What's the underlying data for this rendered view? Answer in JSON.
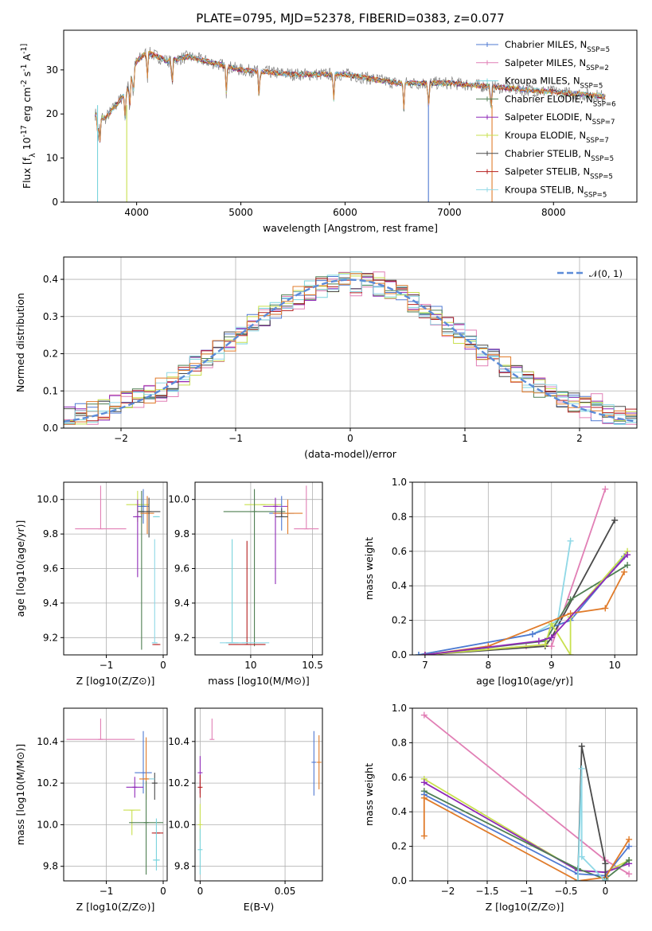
{
  "figure": {
    "title": "PLATE=0795, MJD=52378, FIBERID=0383, z=0.077"
  },
  "colors": {
    "Chabrier MILES": "#4f79d2",
    "Salpeter MILES": "#e17fb5",
    "Kroupa MILES": "#79d4dd",
    "Chabrier ELODIE": "#4f7f52",
    "Salpeter ELODIE": "#8f2ab8",
    "Kroupa ELODIE": "#c9e04f",
    "Chabrier STELIB": "#4a4a4a",
    "Salpeter STELIB": "#b51e1e",
    "Kroupa STELIB": "#8fd8e6",
    "extra": "#e07b2a"
  },
  "chart_data": [
    {
      "id": "spectrum",
      "type": "line",
      "title": "PLATE=0795, MJD=52378, FIBERID=0383, z=0.077",
      "xlabel": "wavelength [Angstrom, rest frame]",
      "ylabel": "Flux [f_λ 10^-17 erg cm^-2 s^-1 A^-1]",
      "xlim": [
        3300,
        8800
      ],
      "ylim": [
        0,
        39
      ],
      "xticks": [
        4000,
        5000,
        6000,
        7000,
        8000
      ],
      "yticks": [
        0,
        10,
        20,
        30
      ],
      "legend_position": "top-right",
      "series": [
        {
          "name": "Chabrier MILES, N_SSP=5"
        },
        {
          "name": "Salpeter MILES, N_SSP=2"
        },
        {
          "name": "Kroupa MILES, N_SSP=5"
        },
        {
          "name": "Chabrier ELODIE, N_SSP=6"
        },
        {
          "name": "Salpeter ELODIE, N_SSP=7"
        },
        {
          "name": "Kroupa ELODIE, N_SSP=7"
        },
        {
          "name": "Chabrier STELIB, N_SSP=5"
        },
        {
          "name": "Salpeter STELIB, N_SSP=5"
        },
        {
          "name": "Kroupa STELIB, N_SSP=5"
        }
      ],
      "continuum_x": [
        3600,
        3700,
        3800,
        3900,
        4000,
        4100,
        4300,
        4500,
        5000,
        5500,
        6000,
        6500,
        7000,
        7500,
        8000,
        8500
      ],
      "continuum_y": [
        20,
        19,
        22,
        25,
        32,
        34,
        32,
        33,
        30,
        29,
        29,
        27,
        27,
        26,
        25,
        24
      ]
    },
    {
      "id": "residual-histogram",
      "type": "line",
      "xlabel": "(data-model)/error",
      "ylabel": "Normed distribution",
      "xlim": [
        -2.5,
        2.5
      ],
      "ylim": [
        0,
        0.46
      ],
      "xticks": [
        -2,
        -1,
        0,
        1,
        2
      ],
      "yticks": [
        0.0,
        0.1,
        0.2,
        0.3,
        0.4
      ],
      "grid": true,
      "legend_position": "top-right",
      "reference": {
        "name": "N(0,1)",
        "mean": 0,
        "sigma": 1
      }
    },
    {
      "id": "age-vs-Z",
      "type": "scatter",
      "xlabel": "Z [log10(Z/Z⊙)]",
      "ylabel": "age [log10(age/yr)]",
      "xlim": [
        -1.75,
        0.07
      ],
      "ylim": [
        9.1,
        10.1
      ],
      "xticks": [
        -1,
        0
      ],
      "yticks": [
        9.2,
        9.4,
        9.6,
        9.8,
        10.0
      ],
      "grid": true,
      "points": [
        {
          "series": "Salpeter MILES",
          "x": -1.1,
          "y": 9.83,
          "xerr": 0.45,
          "yerr_lo": 0,
          "yerr_hi": 0.25
        },
        {
          "series": "Kroupa ELODIE",
          "x": -0.45,
          "y": 9.97,
          "xerr": 0.2,
          "yerr_lo": 0.1,
          "yerr_hi": 0.08
        },
        {
          "series": "Chabrier MILES",
          "x": -0.35,
          "y": 9.96,
          "xerr": 0.1,
          "yerr_lo": 0.1,
          "yerr_hi": 0.1
        },
        {
          "series": "Salpeter ELODIE",
          "x": -0.45,
          "y": 9.9,
          "xerr": 0.08,
          "yerr_lo": 0.35,
          "yerr_hi": 0.1
        },
        {
          "series": "Chabrier ELODIE",
          "x": -0.38,
          "y": 9.93,
          "xerr": 0.05,
          "yerr_lo": 0.8,
          "yerr_hi": 0.12
        },
        {
          "series": "extra",
          "x": -0.28,
          "y": 9.92,
          "xerr": 0.12,
          "yerr_lo": 0.12,
          "yerr_hi": 0.1
        },
        {
          "series": "Chabrier STELIB",
          "x": -0.25,
          "y": 9.93,
          "xerr": 0.2,
          "yerr_lo": 0.15,
          "yerr_hi": 0.08
        },
        {
          "series": "Kroupa STELIB",
          "x": -0.15,
          "y": 9.17,
          "xerr": 0.05,
          "yerr_lo": 0,
          "yerr_hi": 0.6
        },
        {
          "series": "Salpeter STELIB",
          "x": -0.12,
          "y": 9.16,
          "xerr": 0.07,
          "yerr_lo": 0,
          "yerr_hi": 0
        },
        {
          "series": "Kroupa MILES",
          "x": -0.12,
          "y": 9.9,
          "xerr": 0.06,
          "yerr_lo": 0,
          "yerr_hi": 0
        }
      ]
    },
    {
      "id": "age-vs-mass",
      "type": "scatter",
      "xlabel": "mass [log10(M/M⊙)]",
      "ylabel": "",
      "xlim": [
        9.55,
        10.58
      ],
      "ylim": [
        9.1,
        10.1
      ],
      "xticks": [
        10.0,
        10.5
      ],
      "yticks": [
        9.2,
        9.4,
        9.6,
        9.8,
        10.0
      ],
      "grid": true,
      "points": [
        {
          "series": "Salpeter MILES",
          "x": 10.45,
          "y": 9.83,
          "xerr": 0.1,
          "yerr_lo": 0,
          "yerr_hi": 0.25
        },
        {
          "series": "Kroupa ELODIE",
          "x": 10.1,
          "y": 9.97,
          "xerr": 0.15,
          "yerr_lo": 0,
          "yerr_hi": 0
        },
        {
          "series": "Chabrier ELODIE",
          "x": 10.03,
          "y": 9.93,
          "xerr": 0.25,
          "yerr_lo": 0.78,
          "yerr_hi": 0.13
        },
        {
          "series": "Salpeter ELODIE",
          "x": 10.2,
          "y": 9.96,
          "xerr": 0.1,
          "yerr_lo": 0.45,
          "yerr_hi": 0.05
        },
        {
          "series": "Chabrier MILES",
          "x": 10.25,
          "y": 9.92,
          "xerr": 0.1,
          "yerr_lo": 0.1,
          "yerr_hi": 0.1
        },
        {
          "series": "extra",
          "x": 10.3,
          "y": 9.92,
          "xerr": 0.12,
          "yerr_lo": 0.12,
          "yerr_hi": 0.08
        },
        {
          "series": "Chabrier STELIB",
          "x": 10.25,
          "y": 9.9,
          "xerr": 0.05,
          "yerr_lo": 0,
          "yerr_hi": 0.05
        },
        {
          "series": "Kroupa MILES",
          "x": 9.85,
          "y": 9.17,
          "xerr": 0.05,
          "yerr_lo": 0,
          "yerr_hi": 0.6
        },
        {
          "series": "Salpeter STELIB",
          "x": 9.97,
          "y": 9.16,
          "xerr": 0.15,
          "yerr_lo": 0,
          "yerr_hi": 0.6
        },
        {
          "series": "Kroupa STELIB",
          "x": 9.95,
          "y": 9.17,
          "xerr": 0.2,
          "yerr_lo": 0,
          "yerr_hi": 0
        }
      ]
    },
    {
      "id": "mass-weight-vs-age",
      "type": "line",
      "xlabel": "age [log10(age/yr)]",
      "ylabel": "mass weight",
      "xlim": [
        6.8,
        10.35
      ],
      "ylim": [
        0,
        1.0
      ],
      "xticks": [
        7,
        8,
        9,
        10
      ],
      "yticks": [
        0.0,
        0.2,
        0.4,
        0.6,
        0.8,
        1.0
      ],
      "grid": true,
      "series": [
        {
          "series": "Salpeter MILES",
          "x": [
            7.0,
            8.6,
            9.0,
            9.85
          ],
          "y": [
            0.0,
            0.05,
            0.05,
            0.96
          ]
        },
        {
          "series": "Chabrier STELIB",
          "x": [
            7.0,
            8.9,
            9.0,
            10.0
          ],
          "y": [
            0.0,
            0.05,
            0.1,
            0.78
          ]
        },
        {
          "series": "Kroupa STELIB",
          "x": [
            6.9,
            8.7,
            9.1,
            9.3
          ],
          "y": [
            0.0,
            0.12,
            0.2,
            0.66
          ]
        },
        {
          "series": "Chabrier MILES",
          "x": [
            6.9,
            8.7,
            9.3,
            10.15
          ],
          "y": [
            0.0,
            0.12,
            0.2,
            0.57
          ]
        },
        {
          "series": "Chabrier ELODIE",
          "x": [
            7.0,
            8.9,
            9.3,
            10.2
          ],
          "y": [
            0.0,
            0.08,
            0.32,
            0.52
          ]
        },
        {
          "series": "Kroupa ELODIE",
          "x": [
            7.0,
            8.9,
            9.0,
            9.3,
            9.3,
            10.2
          ],
          "y": [
            0.0,
            0.06,
            0.18,
            0.0,
            0.22,
            0.6
          ]
        },
        {
          "series": "extra",
          "x": [
            7.0,
            8.0,
            9.3,
            9.85,
            10.15
          ],
          "y": [
            0.0,
            0.05,
            0.24,
            0.27,
            0.48
          ]
        },
        {
          "series": "Salpeter ELODIE",
          "x": [
            7.0,
            8.8,
            9.0,
            10.2
          ],
          "y": [
            0.0,
            0.08,
            0.1,
            0.58
          ]
        }
      ]
    },
    {
      "id": "mass-vs-Z",
      "type": "scatter",
      "xlabel": "Z [log10(Z/Z⊙)]",
      "ylabel": "mass [log10(M/M⊙)]",
      "xlim": [
        -1.75,
        0.07
      ],
      "ylim": [
        9.73,
        10.56
      ],
      "xticks": [
        -1,
        0
      ],
      "yticks": [
        9.8,
        10.0,
        10.2,
        10.4
      ],
      "grid": true,
      "points": [
        {
          "series": "Salpeter MILES",
          "x": -1.1,
          "y": 10.41,
          "xerr": 0.6,
          "yerr_lo": 0,
          "yerr_hi": 0.1
        },
        {
          "series": "Chabrier MILES",
          "x": -0.35,
          "y": 10.25,
          "xerr": 0.15,
          "yerr_lo": 0.1,
          "yerr_hi": 0.2
        },
        {
          "series": "Salpeter ELODIE",
          "x": -0.5,
          "y": 10.18,
          "xerr": 0.15,
          "yerr_lo": 0.05,
          "yerr_hi": 0.05
        },
        {
          "series": "extra",
          "x": -0.3,
          "y": 10.22,
          "xerr": 0.12,
          "yerr_lo": 0.1,
          "yerr_hi": 0.2
        },
        {
          "series": "Kroupa ELODIE",
          "x": -0.55,
          "y": 10.07,
          "xerr": 0.15,
          "yerr_lo": 0.12,
          "yerr_hi": 0
        },
        {
          "series": "Chabrier ELODIE",
          "x": -0.3,
          "y": 10.01,
          "xerr": 0.3,
          "yerr_lo": 0.25,
          "yerr_hi": 0.2
        },
        {
          "series": "Chabrier STELIB",
          "x": -0.15,
          "y": 10.2,
          "xerr": 0.05,
          "yerr_lo": 0.08,
          "yerr_hi": 0.05
        },
        {
          "series": "Salpeter STELIB",
          "x": -0.1,
          "y": 9.96,
          "xerr": 0.1,
          "yerr_lo": 0,
          "yerr_hi": 0
        },
        {
          "series": "Kroupa MILES",
          "x": -0.12,
          "y": 9.83,
          "xerr": 0.06,
          "yerr_lo": 0.05,
          "yerr_hi": 0.2
        },
        {
          "series": "Kroupa STELIB",
          "x": -0.2,
          "y": 10.22,
          "xerr": 0.05,
          "yerr_lo": 0,
          "yerr_hi": 0
        }
      ]
    },
    {
      "id": "mass-vs-EBV",
      "type": "scatter",
      "xlabel": "E(B-V)",
      "ylabel": "",
      "xlim": [
        -0.003,
        0.072
      ],
      "ylim": [
        9.73,
        10.56
      ],
      "xticks": [
        0.0,
        0.05
      ],
      "yticks": [
        9.8,
        10.0,
        10.2,
        10.4
      ],
      "grid": true,
      "points": [
        {
          "series": "Salpeter MILES",
          "x": 0.007,
          "y": 10.41,
          "yerr_lo": 0,
          "yerr_hi": 0.1
        },
        {
          "series": "Chabrier MILES",
          "x": 0.067,
          "y": 10.3,
          "yerr_lo": 0.16,
          "yerr_hi": 0.15
        },
        {
          "series": "extra",
          "x": 0.07,
          "y": 10.3,
          "yerr_lo": 0.13,
          "yerr_hi": 0.13
        },
        {
          "series": "Salpeter ELODIE",
          "x": 0.0,
          "y": 10.25,
          "yerr_lo": 0.1,
          "yerr_hi": 0.08
        },
        {
          "series": "Salpeter STELIB",
          "x": 0.0,
          "y": 10.18,
          "yerr_lo": 0.05,
          "yerr_hi": 0.06
        },
        {
          "series": "Kroupa ELODIE",
          "x": 0.0,
          "y": 10.0,
          "yerr_lo": 0.08,
          "yerr_hi": 0.1
        },
        {
          "series": "Kroupa MILES",
          "x": 0.0,
          "y": 9.88,
          "yerr_lo": 0.12,
          "yerr_hi": 0.1
        }
      ]
    },
    {
      "id": "mass-weight-vs-Z",
      "type": "line",
      "xlabel": "Z [log10(Z/Z⊙)]",
      "ylabel": "mass weight",
      "xlim": [
        -2.45,
        0.4
      ],
      "ylim": [
        0,
        1.0
      ],
      "xticks": [
        -2.0,
        -1.5,
        -1.0,
        -0.5,
        0.0
      ],
      "yticks": [
        0.0,
        0.2,
        0.4,
        0.6,
        0.8,
        1.0
      ],
      "grid": true,
      "series": [
        {
          "series": "Salpeter MILES",
          "x": [
            -2.3,
            0.0,
            0.3
          ],
          "y": [
            0.96,
            0.12,
            0.04
          ]
        },
        {
          "series": "Kroupa ELODIE",
          "x": [
            -2.3,
            -0.35,
            0.0,
            0.3
          ],
          "y": [
            0.59,
            0.06,
            0.05,
            0.12
          ]
        },
        {
          "series": "Salpeter ELODIE",
          "x": [
            -2.3,
            -0.35,
            0.0,
            0.3
          ],
          "y": [
            0.57,
            0.06,
            0.05,
            0.1
          ]
        },
        {
          "series": "Chabrier ELODIE",
          "x": [
            -2.3,
            -0.35,
            0.0,
            0.3
          ],
          "y": [
            0.52,
            0.07,
            0.01,
            0.12
          ]
        },
        {
          "series": "Chabrier MILES",
          "x": [
            -2.3,
            -0.35,
            0.0,
            0.3
          ],
          "y": [
            0.5,
            0.04,
            0.03,
            0.2
          ]
        },
        {
          "series": "extra",
          "x": [
            -2.3,
            -2.3,
            -0.35,
            0.0,
            0.3
          ],
          "y": [
            0.26,
            0.48,
            0.0,
            0.02,
            0.24
          ]
        },
        {
          "series": "Chabrier STELIB",
          "x": [
            -0.35,
            -0.3,
            0.0,
            0.0
          ],
          "y": [
            0.0,
            0.78,
            0.1,
            0.0
          ]
        },
        {
          "series": "Kroupa STELIB",
          "x": [
            -0.35,
            -0.3,
            -0.3,
            0.0
          ],
          "y": [
            0.0,
            0.65,
            0.14,
            0.0
          ]
        }
      ]
    }
  ]
}
